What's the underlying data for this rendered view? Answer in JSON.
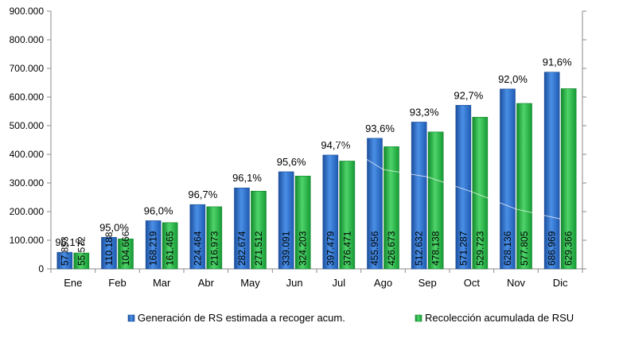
{
  "chart_data": {
    "type": "bar",
    "categories": [
      "Ene",
      "Feb",
      "Mar",
      "Abr",
      "May",
      "Jun",
      "Jul",
      "Ago",
      "Sep",
      "Oct",
      "Nov",
      "Dic"
    ],
    "series": [
      {
        "name": "Generación de RS estimada a recoger acum.",
        "color": "#2f6fc7",
        "values": [
          57853,
          110188,
          168219,
          224464,
          282674,
          339091,
          397479,
          455956,
          512632,
          571287,
          628136,
          686969
        ],
        "labels": [
          "57.853",
          "110.188",
          "168.219",
          "224.464",
          "282.674",
          "339.091",
          "397.479",
          "455.956",
          "512.632",
          "571.287",
          "628.136",
          "686.969"
        ]
      },
      {
        "name": "Recolección acumulada de RSU",
        "color": "#2eb24a",
        "values": [
          55572,
          104666,
          161465,
          216973,
          271512,
          324203,
          376471,
          426673,
          478138,
          529723,
          577805,
          629366
        ],
        "labels": [
          "55.572",
          "104.666",
          "161.465",
          "216.973",
          "271.512",
          "324.203",
          "376.471",
          "426.673",
          "478.138",
          "529.723",
          "577.805",
          "629.366"
        ]
      }
    ],
    "percent_labels": [
      "96,1%",
      "95,0%",
      "96,0%",
      "96,7%",
      "96,1%",
      "95,6%",
      "94,7%",
      "93,6%",
      "93,3%",
      "92,7%",
      "92,0%",
      "91,6%"
    ],
    "percent_values": [
      96.1,
      95.0,
      96.0,
      96.7,
      96.1,
      95.6,
      94.7,
      93.6,
      93.3,
      92.7,
      92.0,
      91.6
    ],
    "ylim": [
      0,
      900000
    ],
    "yticks": [
      0,
      100000,
      200000,
      300000,
      400000,
      500000,
      600000,
      700000,
      800000,
      900000
    ],
    "ytick_labels": [
      "0",
      "100.000",
      "200.000",
      "300.000",
      "400.000",
      "500.000",
      "600.000",
      "700.000",
      "800.000",
      "900.000"
    ],
    "secondary_axis": true,
    "grid": false,
    "legend_position": "bottom"
  }
}
